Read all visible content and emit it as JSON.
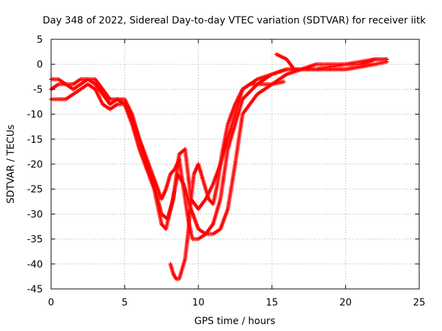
{
  "chart_data": {
    "type": "scatter",
    "title": "Day 348 of 2022, Sidereal Day-to-day VTEC variation (SDTVAR) for receiver iitk",
    "xlabel": "GPS time / hours",
    "ylabel": "SDTVAR / TECUs",
    "xlim": [
      0,
      25
    ],
    "ylim": [
      -45,
      5
    ],
    "xticks": [
      0,
      5,
      10,
      15,
      20,
      25
    ],
    "yticks": [
      5,
      0,
      -5,
      -10,
      -15,
      -20,
      -25,
      -30,
      -35,
      -40,
      -45
    ],
    "grid": true,
    "marker": "+",
    "color": "#ff0000",
    "series": [
      {
        "x": [
          0,
          0.5,
          1,
          1.5,
          2,
          2.5,
          3,
          3.5,
          4,
          4.5,
          5,
          5.5,
          6,
          6.5,
          7,
          7.5,
          7.8,
          8.2,
          8.6,
          9,
          9.5,
          10,
          10.5,
          11,
          11.5,
          12,
          12.5,
          13,
          14,
          15,
          16,
          17,
          18,
          19,
          20,
          21,
          22,
          22.8
        ],
        "y": [
          -7,
          -7,
          -7,
          -6,
          -5,
          -4,
          -5,
          -8,
          -9,
          -8,
          -8,
          -12,
          -17,
          -21,
          -25,
          -32,
          -33,
          -28,
          -22,
          -24,
          -29,
          -33,
          -34,
          -34,
          -33,
          -29,
          -20,
          -10,
          -6,
          -4,
          -2,
          -1,
          -1,
          -1,
          -1,
          -0.5,
          0,
          0.5
        ]
      },
      {
        "x": [
          0,
          0.5,
          1,
          1.5,
          2,
          2.5,
          3,
          3.5,
          4,
          4.5,
          5,
          5.5,
          6,
          6.5,
          7,
          7.5,
          7.9,
          8.3,
          8.7,
          9.1,
          9.5,
          10,
          10.5,
          11,
          11.5,
          12,
          12.5,
          13,
          14,
          15,
          16,
          17,
          18,
          19,
          20,
          21,
          22,
          22.8
        ],
        "y": [
          -5,
          -4,
          -4,
          -4,
          -3,
          -3,
          -3,
          -5,
          -7,
          -7,
          -7,
          -10,
          -15,
          -20,
          -24,
          -30,
          -31,
          -27,
          -18,
          -17,
          -27,
          -29,
          -27,
          -24,
          -20,
          -15,
          -10,
          -5,
          -3,
          -2,
          -1,
          -1,
          0,
          0,
          0,
          0.5,
          1,
          1
        ]
      },
      {
        "x": [
          0,
          0.5,
          1,
          1.5,
          2,
          2.5,
          3,
          3.5,
          4,
          4.5,
          5,
          5.5,
          6,
          6.5,
          7,
          7.5,
          7.8,
          8.1,
          8.4,
          8.7,
          9,
          9.3,
          9.6,
          10,
          10.5,
          11,
          11.5,
          12,
          12.5,
          13,
          14,
          15,
          16,
          17,
          18,
          19,
          20,
          21,
          22,
          22.8
        ],
        "y": [
          -3,
          -3,
          -4,
          -5,
          -4,
          -3,
          -4,
          -6,
          -8,
          -7,
          -8,
          -11,
          -15,
          -19,
          -23,
          -27,
          -25,
          -22,
          -21,
          -19,
          -25,
          -31,
          -35,
          -35,
          -34,
          -32,
          -27,
          -17,
          -12,
          -7,
          -4,
          -2,
          -1,
          -1,
          -1,
          -0.5,
          0,
          0,
          1,
          1
        ]
      },
      {
        "x": [
          8.1,
          8.3,
          8.5,
          8.7,
          8.9,
          9.1,
          9.3,
          9.5,
          9.7,
          10,
          10.3,
          10.7,
          11,
          11.3,
          11.6,
          12,
          12.5,
          13,
          13.5,
          14,
          15,
          15.8
        ],
        "y": [
          -40,
          -42,
          -43,
          -43,
          -41,
          -39,
          -34,
          -27,
          -22,
          -20,
          -23,
          -27,
          -28,
          -24,
          -18,
          -12,
          -8,
          -5,
          -4,
          -4,
          -4,
          -3.5
        ]
      },
      {
        "x": [
          15.3,
          16,
          16.5,
          17,
          18,
          19,
          20,
          21,
          21.8
        ],
        "y": [
          2,
          1,
          -1,
          -1,
          -1,
          -1,
          -1,
          -0.5,
          0
        ]
      }
    ]
  }
}
